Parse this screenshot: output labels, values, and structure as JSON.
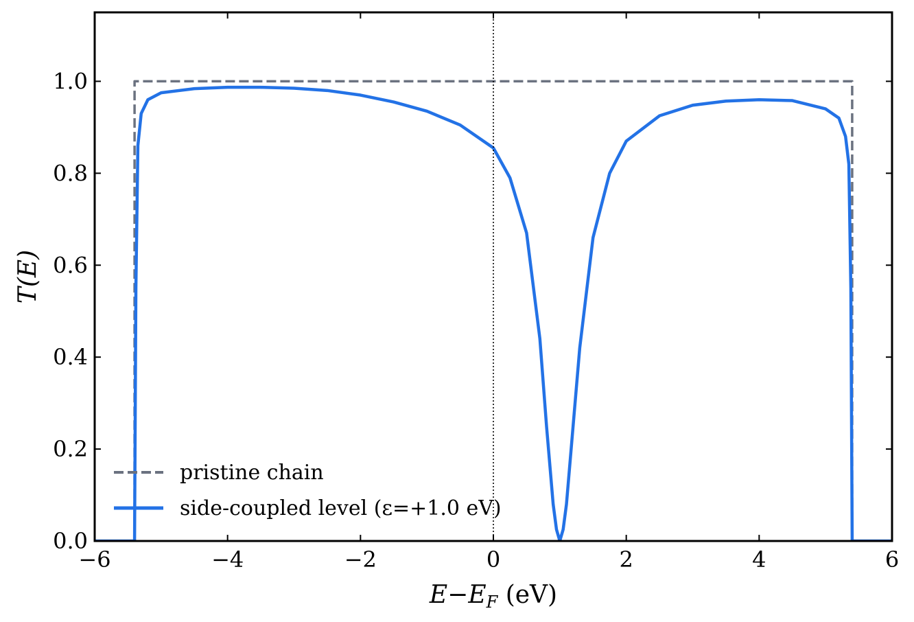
{
  "chart_data": {
    "type": "line",
    "title": "",
    "xlabel": "E−E_F (eV)",
    "ylabel": "T(E)",
    "xlim": [
      -6,
      6
    ],
    "ylim": [
      0,
      1.15
    ],
    "xticks": [
      -6,
      -4,
      -2,
      0,
      2,
      4,
      6
    ],
    "xtick_labels": [
      "−6",
      "−4",
      "−2",
      "0",
      "2",
      "4",
      "6"
    ],
    "yticks": [
      0.0,
      0.2,
      0.4,
      0.6,
      0.8,
      1.0
    ],
    "ytick_labels": [
      "0.0",
      "0.2",
      "0.4",
      "0.6",
      "0.8",
      "1.0"
    ],
    "grid": false,
    "legend_position": "lower-left",
    "vertical_reference_line": {
      "x": 0,
      "style": "dotted",
      "color": "#000000"
    },
    "series": [
      {
        "name": "pristine chain",
        "style": "dashed",
        "color": "#6b7280",
        "x": [
          -6.0,
          -5.4,
          -5.4,
          5.4,
          5.4,
          6.0
        ],
        "y": [
          0.0,
          0.0,
          1.0,
          1.0,
          0.0,
          0.0
        ]
      },
      {
        "name": "side-coupled level (ε=+1.0 eV)",
        "style": "solid",
        "color": "#2372e6",
        "x": [
          -6.0,
          -5.4,
          -5.38,
          -5.35,
          -5.3,
          -5.2,
          -5.0,
          -4.5,
          -4.0,
          -3.5,
          -3.0,
          -2.5,
          -2.0,
          -1.5,
          -1.0,
          -0.5,
          0.0,
          0.25,
          0.5,
          0.7,
          0.8,
          0.9,
          0.95,
          1.0,
          1.05,
          1.1,
          1.2,
          1.3,
          1.5,
          1.75,
          2.0,
          2.5,
          3.0,
          3.5,
          4.0,
          4.5,
          5.0,
          5.2,
          5.3,
          5.35,
          5.38,
          5.4,
          6.0
        ],
        "y": [
          0.0,
          0.0,
          0.55,
          0.86,
          0.93,
          0.96,
          0.975,
          0.984,
          0.987,
          0.987,
          0.985,
          0.98,
          0.97,
          0.955,
          0.935,
          0.905,
          0.855,
          0.79,
          0.67,
          0.44,
          0.25,
          0.08,
          0.025,
          0.0,
          0.025,
          0.08,
          0.25,
          0.42,
          0.66,
          0.8,
          0.87,
          0.925,
          0.948,
          0.957,
          0.96,
          0.958,
          0.94,
          0.92,
          0.88,
          0.82,
          0.55,
          0.0,
          0.0
        ]
      }
    ],
    "legend": [
      {
        "label": "pristine chain",
        "style": "dashed",
        "color": "#6b7280"
      },
      {
        "label": "side-coupled level (ε=+1.0 eV)",
        "style": "solid",
        "color": "#2372e6"
      }
    ]
  }
}
